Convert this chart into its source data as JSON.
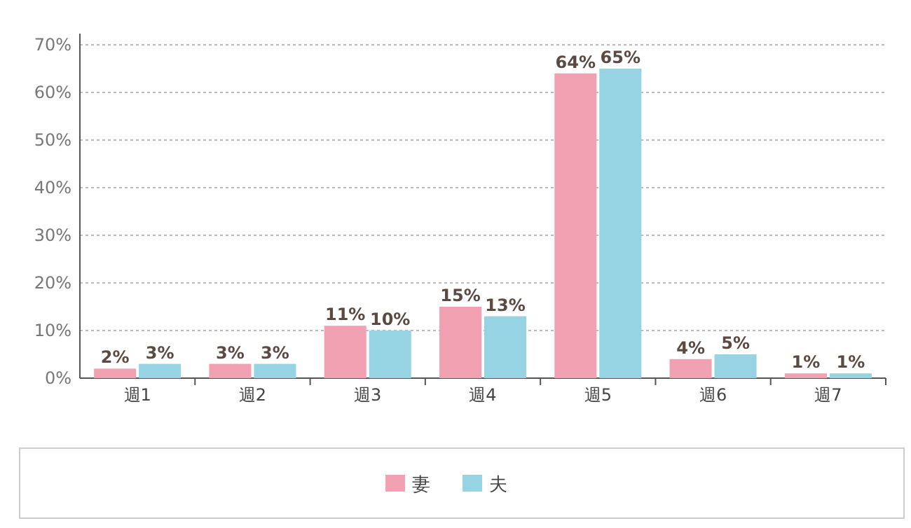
{
  "chart_data": {
    "type": "bar",
    "categories": [
      "週1",
      "週2",
      "週3",
      "週4",
      "週5",
      "週6",
      "週7"
    ],
    "series": [
      {
        "name": "妻",
        "color": "#f2a1b2",
        "values": [
          2,
          3,
          11,
          15,
          64,
          4,
          1
        ],
        "value_labels": [
          "2%",
          "3%",
          "11%",
          "15%",
          "64%",
          "4%",
          "1%"
        ]
      },
      {
        "name": "夫",
        "color": "#96d3e3",
        "values": [
          3,
          3,
          10,
          13,
          65,
          5,
          1
        ],
        "value_labels": [
          "3%",
          "3%",
          "10%",
          "13%",
          "65%",
          "5%",
          "1%"
        ]
      }
    ],
    "ylim": [
      0,
      70
    ],
    "yticks": [
      {
        "value": 0,
        "label": "0%"
      },
      {
        "value": 10,
        "label": "10%"
      },
      {
        "value": 20,
        "label": "20%"
      },
      {
        "value": 30,
        "label": "30%"
      },
      {
        "value": 40,
        "label": "40%"
      },
      {
        "value": 50,
        "label": "50%"
      },
      {
        "value": 60,
        "label": "60%"
      },
      {
        "value": 70,
        "label": "70%"
      }
    ],
    "grid": "y",
    "legend": "bottom"
  }
}
